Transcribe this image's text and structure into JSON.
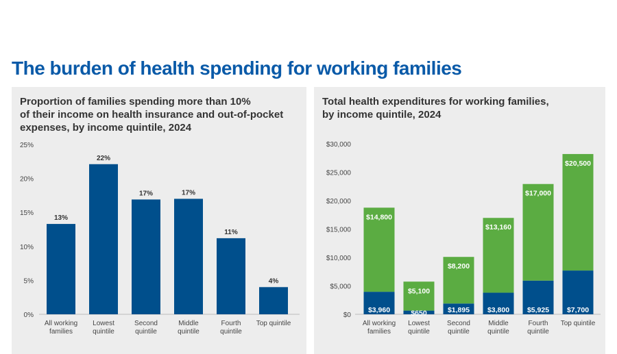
{
  "title": "The burden of health spending for working families",
  "colors": {
    "blue": "#004f8c",
    "green": "#5bac42",
    "title": "#0a5aa8"
  },
  "chart_data": [
    {
      "type": "bar",
      "title": "Proportion of families spending more than 10% of their income on health insurance and out-of-pocket expenses, by income quintile, 2024",
      "title_lines": [
        "Proportion of families spending more than 10%",
        "of their income on health insurance and out-of-pocket",
        "expenses, by income quintile, 2024"
      ],
      "categories": [
        [
          "All working",
          "families"
        ],
        [
          "Lowest",
          "quintile"
        ],
        [
          "Second",
          "quintile"
        ],
        [
          "Middle",
          "quintile"
        ],
        [
          "Fourth",
          "quintile"
        ],
        [
          "Top quintile"
        ]
      ],
      "values": [
        13.3,
        22.1,
        16.9,
        17.0,
        11.2,
        4.0
      ],
      "labels": [
        "13%",
        "22%",
        "17%",
        "17%",
        "11%",
        "4%"
      ],
      "ylim": [
        0,
        25
      ],
      "yticks": [
        "0%",
        "5%",
        "10%",
        "15%",
        "20%",
        "25%"
      ],
      "grid": false
    },
    {
      "type": "bar",
      "stacked": true,
      "title": "Total health expenditures for working families, by income quintile, 2024",
      "title_lines": [
        "Total health expenditures for working families,",
        "by income quintile, 2024"
      ],
      "categories": [
        [
          "All working",
          "families"
        ],
        [
          "Lowest",
          "quintile"
        ],
        [
          "Second",
          "quintile"
        ],
        [
          "Middle",
          "quintile"
        ],
        [
          "Fourth",
          "quintile"
        ],
        [
          "Top quintile"
        ]
      ],
      "series": [
        {
          "color": "#004f8c",
          "values": [
            3960,
            650,
            1895,
            3800,
            5925,
            7700
          ],
          "labels": [
            "$3,960",
            "$650",
            "$1,895",
            "$3,800",
            "$5,925",
            "$7,700"
          ]
        },
        {
          "color": "#5bac42",
          "values": [
            14800,
            5100,
            8200,
            13160,
            17000,
            20500
          ],
          "labels": [
            "$14,800",
            "$5,100",
            "$8,200",
            "$13,160",
            "$17,000",
            "$20,500"
          ]
        }
      ],
      "ylim": [
        0,
        30000
      ],
      "yticks": [
        "$0",
        "$5,000",
        "$10,000",
        "$15,000",
        "$20,000",
        "$25,000",
        "$30,000"
      ],
      "grid": false
    }
  ]
}
